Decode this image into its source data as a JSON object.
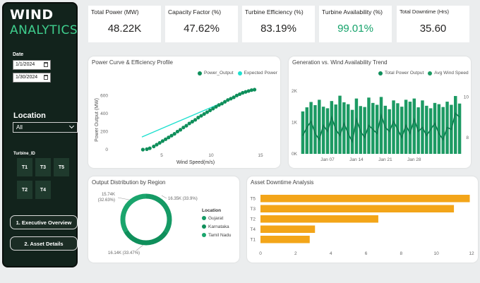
{
  "sidebar": {
    "logo_line1": "WIND",
    "logo_line2": "ANALYTICS",
    "date_label": "Date",
    "date_start": "1/1/2024",
    "date_end": "1/30/2024",
    "location_label": "Location",
    "location_value": "All",
    "turbine_label": "Turbine_ID",
    "turbines": [
      "T1",
      "T3",
      "T5",
      "T2",
      "T4"
    ],
    "nav": [
      "1. Executive Overview",
      "2. Asset Details"
    ]
  },
  "kpis": [
    {
      "title": "Total Power (MW)",
      "value": "48.22K",
      "color": "#252423"
    },
    {
      "title": "Capacity Factor (%)",
      "value": "47.62%",
      "color": "#252423"
    },
    {
      "title": "Turbine Efficiency (%)",
      "value": "83.19%",
      "color": "#252423"
    },
    {
      "title": "Turbine Availability (%)",
      "value": "99.01%",
      "color": "#16a36b"
    },
    {
      "title": "Total Downtime (Hrs)",
      "value": "35.60",
      "color": "#252423"
    }
  ],
  "colors": {
    "green_dark": "#0f8f5b",
    "green_mid": "#1c9a63",
    "cyan": "#1fe0cf",
    "orange": "#f3a519",
    "accent": "#3fcf8e"
  },
  "chart_data": [
    {
      "type": "scatter",
      "title": "Power Curve & Efficiency Profile",
      "xlabel": "Wind Speed(m/s)",
      "ylabel": "Power Output (MW)",
      "xlim": [
        0,
        16
      ],
      "ylim": [
        0,
        720
      ],
      "xticks": [
        5,
        10,
        15
      ],
      "yticks": [
        0,
        200,
        400,
        600
      ],
      "legend": [
        "Power_Output",
        "Expected Power"
      ],
      "x": [
        3.1,
        3.5,
        3.8,
        4.2,
        4.5,
        4.8,
        5.1,
        5.4,
        5.7,
        6.0,
        6.3,
        6.6,
        6.9,
        7.2,
        7.5,
        7.8,
        8.1,
        8.4,
        8.7,
        9.0,
        9.3,
        9.6,
        9.9,
        10.2,
        10.5,
        10.8,
        11.1,
        11.4,
        11.7,
        12.0,
        12.3,
        12.6,
        12.9,
        13.2,
        13.5,
        13.8,
        14.1,
        14.4
      ],
      "y": [
        0,
        5,
        15,
        35,
        55,
        75,
        95,
        115,
        135,
        155,
        175,
        200,
        220,
        245,
        265,
        290,
        310,
        330,
        355,
        375,
        395,
        415,
        435,
        455,
        475,
        495,
        510,
        530,
        550,
        565,
        580,
        600,
        615,
        630,
        640,
        650,
        660,
        665
      ],
      "expected_line": {
        "x": [
          3.0,
          10.8
        ],
        "y": [
          140,
          505
        ]
      }
    },
    {
      "type": "bar",
      "title": "Generation vs. Wind Availability Trend",
      "legend": [
        "Total Power Output",
        "Avg Wind Speed"
      ],
      "xtick_labels": [
        "Jan 07",
        "Jan 14",
        "Jan 21",
        "Jan 28"
      ],
      "ylim_left": [
        0,
        2200
      ],
      "ylim_right": [
        7.2,
        10.6
      ],
      "yticks_left_labels": [
        "0K",
        "1K",
        "2K"
      ],
      "yticks_right_labels": [
        "8",
        "10"
      ],
      "values": [
        1350,
        1480,
        1650,
        1550,
        1720,
        1500,
        1450,
        1680,
        1570,
        1850,
        1640,
        1580,
        1400,
        1760,
        1520,
        1490,
        1790,
        1620,
        1560,
        1810,
        1530,
        1420,
        1700,
        1610,
        1500,
        1720,
        1660,
        1760,
        1480,
        1700,
        1530,
        1450,
        1620,
        1580,
        1490,
        1660,
        1560,
        1840,
        1600
      ],
      "line": [
        8.1,
        8.5,
        8.8,
        8.2,
        7.9,
        8.6,
        8.3,
        9.0,
        8.4,
        8.1,
        8.7,
        8.2,
        7.8,
        8.9,
        8.3,
        8.0,
        8.6,
        8.4,
        8.2,
        9.1,
        8.5,
        8.3,
        8.8,
        8.4,
        8.0,
        8.6,
        8.2,
        8.9,
        8.3,
        8.5,
        8.1,
        8.4,
        8.7,
        8.2,
        7.9,
        8.5,
        8.4,
        9.2,
        9.0
      ]
    },
    {
      "type": "pie",
      "title": "Output Distribution by Region",
      "legend_title": "Location",
      "labels": [
        "Gujarat",
        "Karnataka",
        "Tamil Nadu"
      ],
      "values": [
        16.35,
        15.74,
        16.14
      ],
      "data_labels": [
        "16.35K (33.9%)",
        "15.74K (32.63%)",
        "16.14K (33.47%)"
      ]
    },
    {
      "type": "bar",
      "orientation": "horizontal",
      "title": "Asset Downtime Analysis",
      "categories": [
        "T5",
        "T3",
        "T2",
        "T4",
        "T1"
      ],
      "values": [
        11.9,
        11.0,
        6.7,
        3.1,
        2.8
      ],
      "xlim": [
        0,
        12
      ],
      "xticks": [
        0,
        2,
        4,
        6,
        8,
        10,
        12
      ]
    }
  ]
}
